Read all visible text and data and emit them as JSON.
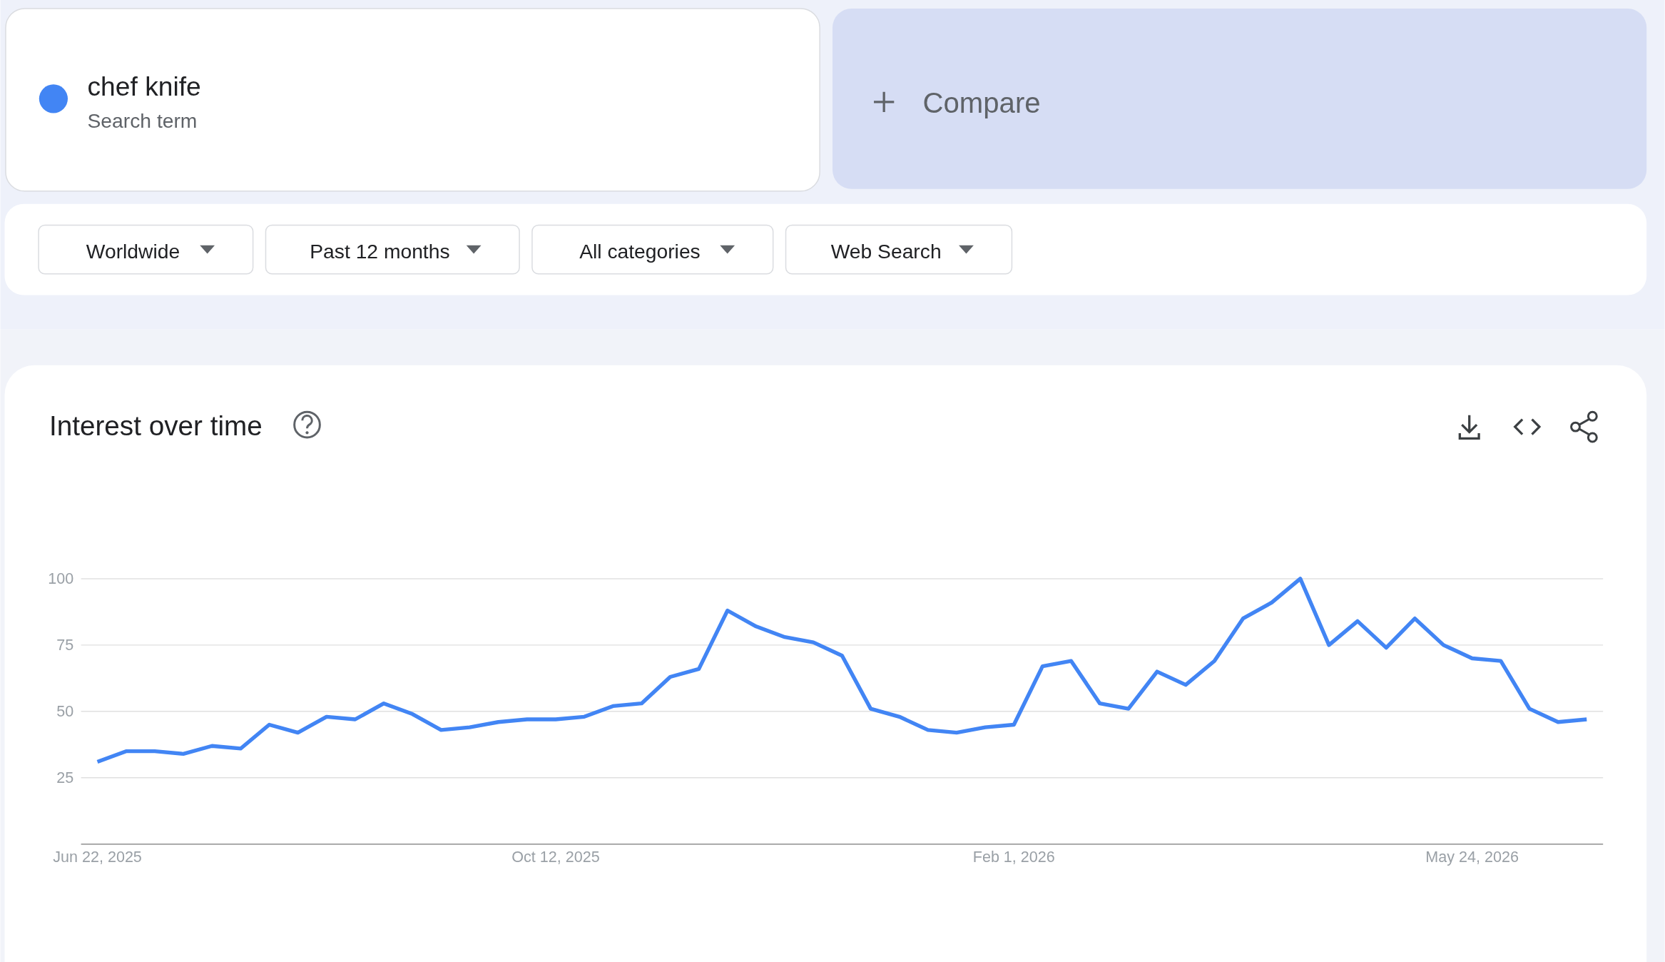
{
  "chart_data": {
    "type": "line",
    "title": "Interest over time",
    "legend": "top left",
    "grid": "y",
    "marker": "none",
    "line_style": "solid",
    "annotations": [
      "Search term",
      "Compare",
      "Worldwide",
      "Past 12 months",
      "All categories",
      "Web Search"
    ],
    "x": [
      "2025-06-22",
      "2025-06-29",
      "2025-07-06",
      "2025-07-13",
      "2025-07-20",
      "2025-07-27",
      "2025-08-03",
      "2025-08-10",
      "2025-08-17",
      "2025-08-24",
      "2025-08-31",
      "2025-09-07",
      "2025-09-14",
      "2025-09-21",
      "2025-09-28",
      "2025-10-05",
      "2025-10-12",
      "2025-10-19",
      "2025-10-26",
      "2025-11-02",
      "2025-11-09",
      "2025-11-16",
      "2025-11-23",
      "2025-11-30",
      "2025-12-07",
      "2025-12-14",
      "2025-12-21",
      "2025-12-28",
      "2026-01-04",
      "2026-01-11",
      "2026-01-18",
      "2026-01-25",
      "2026-02-01",
      "2026-02-08",
      "2026-02-15",
      "2026-02-22",
      "2026-03-01",
      "2026-03-08",
      "2026-03-15",
      "2026-03-22",
      "2026-03-29",
      "2026-04-05",
      "2026-04-12",
      "2026-04-19",
      "2026-04-26",
      "2026-05-03",
      "2026-05-10",
      "2026-05-17",
      "2026-05-24",
      "2026-05-31",
      "2026-06-07",
      "2026-06-14",
      "2026-06-21"
    ],
    "series": [
      {
        "name": "chef knife",
        "color": "#4285f4",
        "values": [
          31,
          35,
          35,
          34,
          37,
          36,
          45,
          42,
          48,
          47,
          53,
          49,
          43,
          44,
          46,
          47,
          47,
          48,
          52,
          53,
          63,
          66,
          88,
          82,
          78,
          76,
          71,
          51,
          48,
          43,
          42,
          44,
          45,
          67,
          69,
          53,
          51,
          65,
          60,
          69,
          85,
          91,
          100,
          75,
          84,
          74,
          85,
          75,
          70,
          69,
          51,
          46,
          47
        ]
      }
    ],
    "xlim": [
      "2025-06-18",
      "2026-06-25"
    ],
    "xticks": [
      {
        "value": "2025-06-22",
        "label": "Jun 22, 2025"
      },
      {
        "value": "2025-10-12",
        "label": "Oct 12, 2025"
      },
      {
        "value": "2026-02-01",
        "label": "Feb 1, 2026"
      },
      {
        "value": "2026-05-24",
        "label": "May 24, 2026"
      }
    ],
    "ylim": [
      0,
      100
    ],
    "yticks": [
      25,
      50,
      75,
      100
    ]
  }
}
